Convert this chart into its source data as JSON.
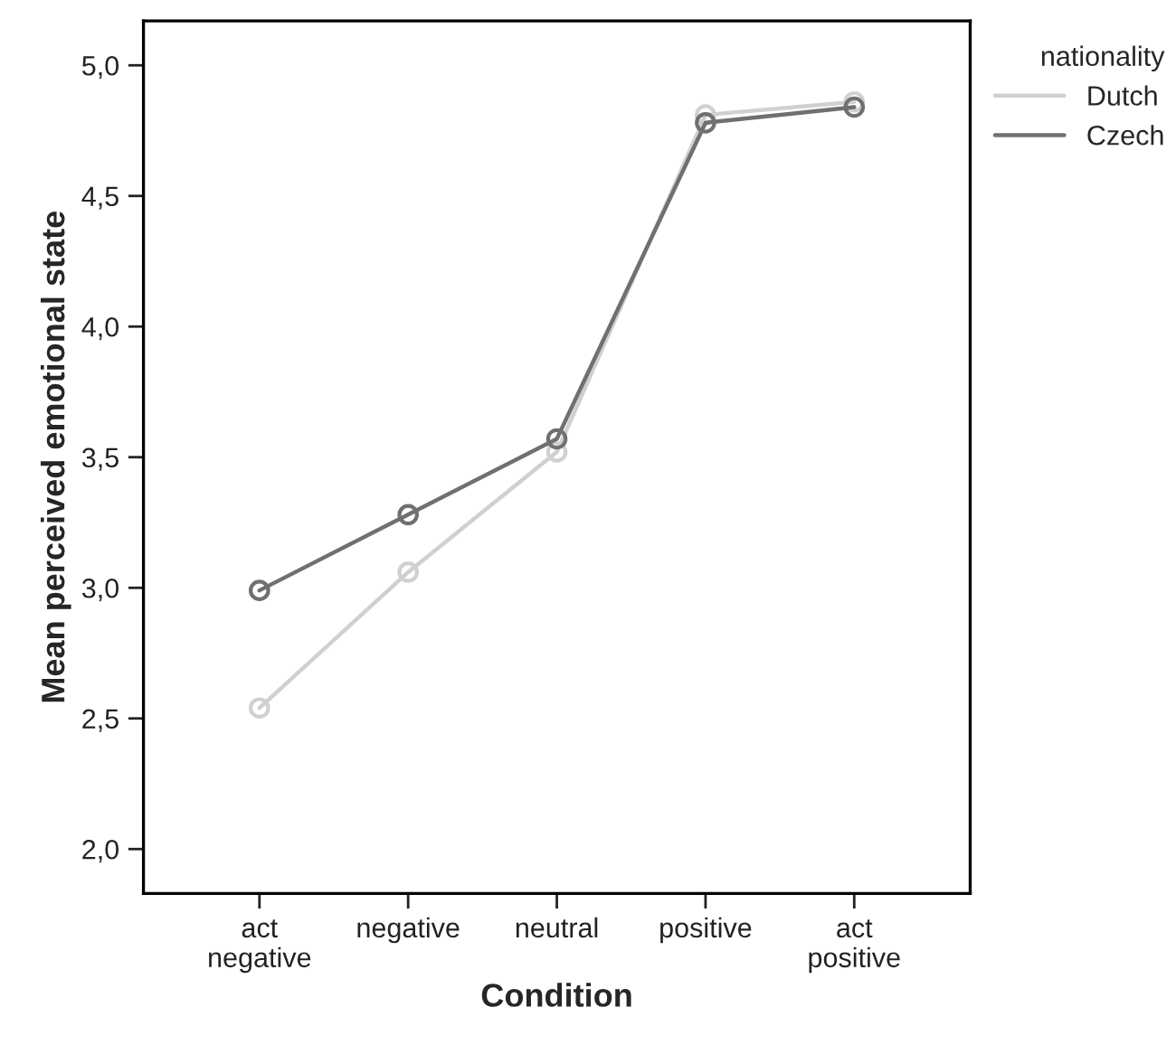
{
  "chart_data": {
    "type": "line",
    "xlabel": "Condition",
    "ylabel": "Mean perceived emotional state",
    "legend_title": "nationality",
    "categories": [
      "act\nnegative",
      "negative",
      "neutral",
      "positive",
      "act\npositive"
    ],
    "series": [
      {
        "name": "Dutch",
        "color": "#d0d0d0",
        "values": [
          2.54,
          3.06,
          3.52,
          4.81,
          4.86
        ]
      },
      {
        "name": "Czech",
        "color": "#707070",
        "values": [
          2.99,
          3.28,
          3.57,
          4.78,
          4.84
        ]
      }
    ],
    "ylim": [
      1.83,
      5.17
    ],
    "yticks": [
      {
        "value": 2.0,
        "label": "2,0"
      },
      {
        "value": 2.5,
        "label": "2,5"
      },
      {
        "value": 3.0,
        "label": "3,0"
      },
      {
        "value": 3.5,
        "label": "3,5"
      },
      {
        "value": 4.0,
        "label": "4,0"
      },
      {
        "value": 4.5,
        "label": "4,5"
      },
      {
        "value": 5.0,
        "label": "5,0"
      }
    ],
    "marker": "circle",
    "line_style": "solid",
    "grid": false,
    "legend": "top right"
  }
}
